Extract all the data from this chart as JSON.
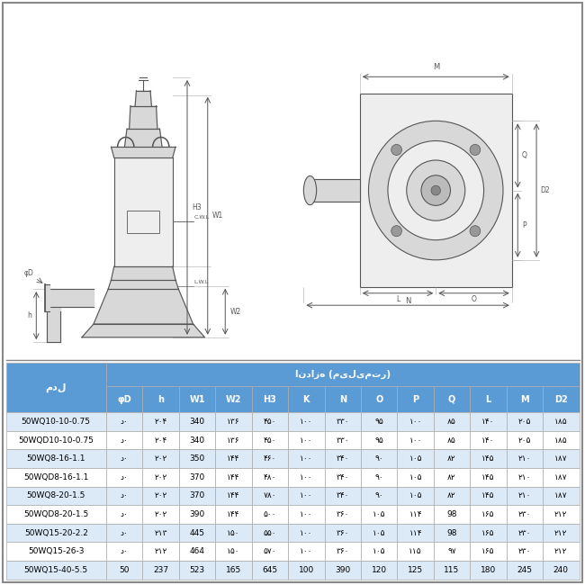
{
  "header_size_label": "اندازه (میلیمتر)",
  "model_label": "مدل",
  "columns": [
    "φD",
    "h",
    "W1",
    "W2",
    "H3",
    "K",
    "N",
    "O",
    "P",
    "Q",
    "L",
    "M",
    "D2"
  ],
  "rows": [
    [
      "50WQ10-10-0.75",
      "د٠",
      "۲۰۴",
      "340",
      "۱۳۶",
      "۴۵۰",
      "۱۰۰",
      "۳۳۰",
      "۹۵",
      "۱۰۰",
      "۸۵",
      "۱۴۰",
      "۲۰۵",
      "۱۸۵"
    ],
    [
      "50WQD10-10-0.75",
      "د٠",
      "۲۰۴",
      "340",
      "۱۳۶",
      "۴۵۰",
      "۱۰۰",
      "۳۳۰",
      "۹۵",
      "۱۰۰",
      "۸۵",
      "۱۴۰",
      "۲۰۵",
      "۱۸۵"
    ],
    [
      "50WQ8-16-1.1",
      "د٠",
      "۲۰۲",
      "350",
      "۱۴۴",
      "۴۶۰",
      "۱۰۰",
      "۳۴۰",
      "۹۰",
      "۱۰۵",
      "۸۲",
      "۱۴۵",
      "۲۱۰",
      "۱۸۷"
    ],
    [
      "50WQD8-16-1.1",
      "د٠",
      "۲۰۲",
      "370",
      "۱۴۴",
      "۴۸۰",
      "۱۰۰",
      "۳۴۰",
      "۹۰",
      "۱۰۵",
      "۸۲",
      "۱۴۵",
      "۲۱۰",
      "۱۸۷"
    ],
    [
      "50WQ8-20-1.5",
      "د٠",
      "۲۰۲",
      "370",
      "۱۴۴",
      "۷۸۰",
      "۱۰۰",
      "۳۴۰",
      "۹۰",
      "۱۰۵",
      "۸۲",
      "۱۴۵",
      "۲۱۰",
      "۱۸۷"
    ],
    [
      "50WQD8-20-1.5",
      "د٠",
      "۲۰۲",
      "390",
      "۱۴۴",
      "۵۰۰",
      "۱۰۰",
      "۳۶۰",
      "۱۰۵",
      "۱۱۴",
      "98",
      "۱۶۵",
      "۲۳۰",
      "۲۱۲"
    ],
    [
      "50WQ15-20-2.2",
      "د٠",
      "۲۱۳",
      "445",
      "۱۵۰",
      "۵۵۰",
      "۱۰۰",
      "۳۶۰",
      "۱۰۵",
      "۱۱۴",
      "98",
      "۱۶۵",
      "۲۳۰",
      "۲۱۲"
    ],
    [
      "50WQ15-26-3",
      "د٠",
      "۲۱۲",
      "464",
      "۱۵۰",
      "۵۷۰",
      "۱۰۰",
      "۳۶۰",
      "۱۰۵",
      "۱۱۵",
      "۹۷",
      "۱۶۵",
      "۲۳۰",
      "۲۱۲"
    ],
    [
      "50WQ15-40-5.5",
      "50",
      "237",
      "523",
      "165",
      "645",
      "100",
      "390",
      "120",
      "125",
      "115",
      "180",
      "245",
      "240"
    ]
  ],
  "header_bg": "#5b9bd5",
  "row_bg_alt": "#dce9f7",
  "row_bg_white": "#ffffff",
  "border_color": "#aaaaaa",
  "header_text_color": "#ffffff",
  "data_text_color": "#000000",
  "outer_border": "#888888",
  "fig_bg": "#ffffff",
  "diagram_bg": "#ffffff",
  "line_color": "#555555",
  "fill_color": "#d8d8d8",
  "fill_light": "#eeeeee"
}
